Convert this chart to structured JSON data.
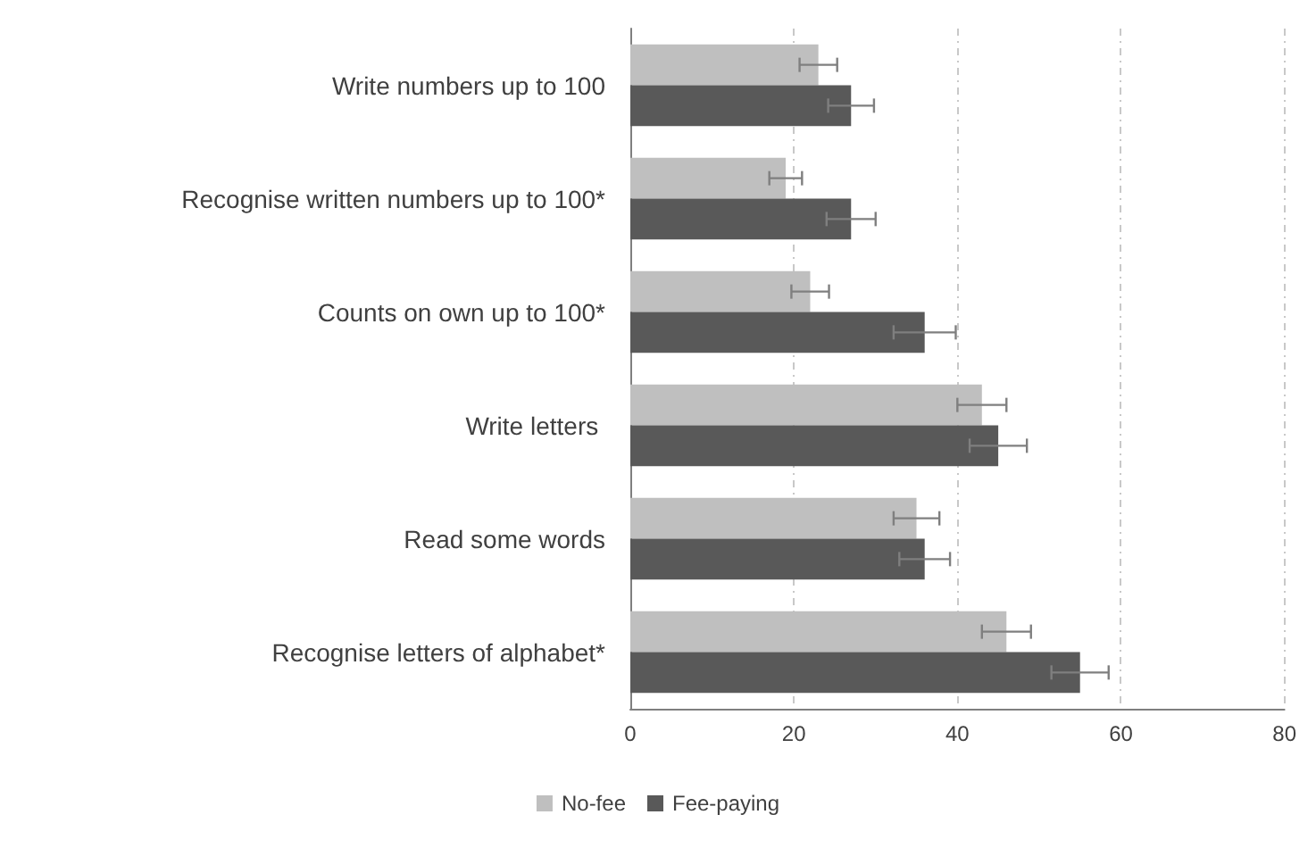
{
  "chart_data": {
    "type": "bar",
    "orientation": "horizontal",
    "categories": [
      "Write numbers up to 100",
      "Recognise written numbers up to 100*",
      "Counts on own up to 100*",
      "Write letters ",
      "Read some words",
      "Recognise letters of alphabet*"
    ],
    "series": [
      {
        "name": "No-fee",
        "color": "#bfbfbf",
        "values": [
          23,
          19,
          22,
          43,
          35,
          46
        ],
        "errors": [
          2.3,
          2,
          2.3,
          3,
          2.8,
          3
        ]
      },
      {
        "name": "Fee-paying",
        "color": "#595959",
        "values": [
          27,
          27,
          36,
          45,
          36,
          55
        ],
        "errors": [
          2.8,
          3,
          3.8,
          3.5,
          3.1,
          3.5
        ]
      }
    ],
    "xlim": [
      0,
      80
    ],
    "xticks": [
      0,
      20,
      40,
      60,
      80
    ],
    "grid": "x",
    "legend": "bottom"
  }
}
